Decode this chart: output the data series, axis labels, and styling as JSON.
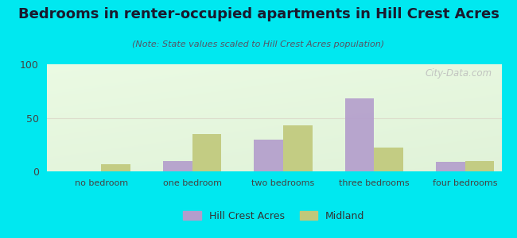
{
  "title": "Bedrooms in renter-occupied apartments in Hill Crest Acres",
  "subtitle": "(Note: State values scaled to Hill Crest Acres population)",
  "categories": [
    "no bedroom",
    "one bedroom",
    "two bedrooms",
    "three bedrooms",
    "four bedrooms"
  ],
  "hill_crest_values": [
    0,
    10,
    30,
    68,
    9
  ],
  "midland_values": [
    7,
    35,
    43,
    22,
    10
  ],
  "hill_crest_color": "#b39dcc",
  "midland_color": "#c0c87a",
  "background_outer": "#00e8f0",
  "ylim": [
    0,
    100
  ],
  "yticks": [
    0,
    50,
    100
  ],
  "grid_color": "#ddddcc",
  "bar_width": 0.32,
  "figsize": [
    6.5,
    3.0
  ],
  "dpi": 100,
  "title_fontsize": 13,
  "subtitle_fontsize": 8,
  "tick_fontsize": 8,
  "legend_fontsize": 9
}
